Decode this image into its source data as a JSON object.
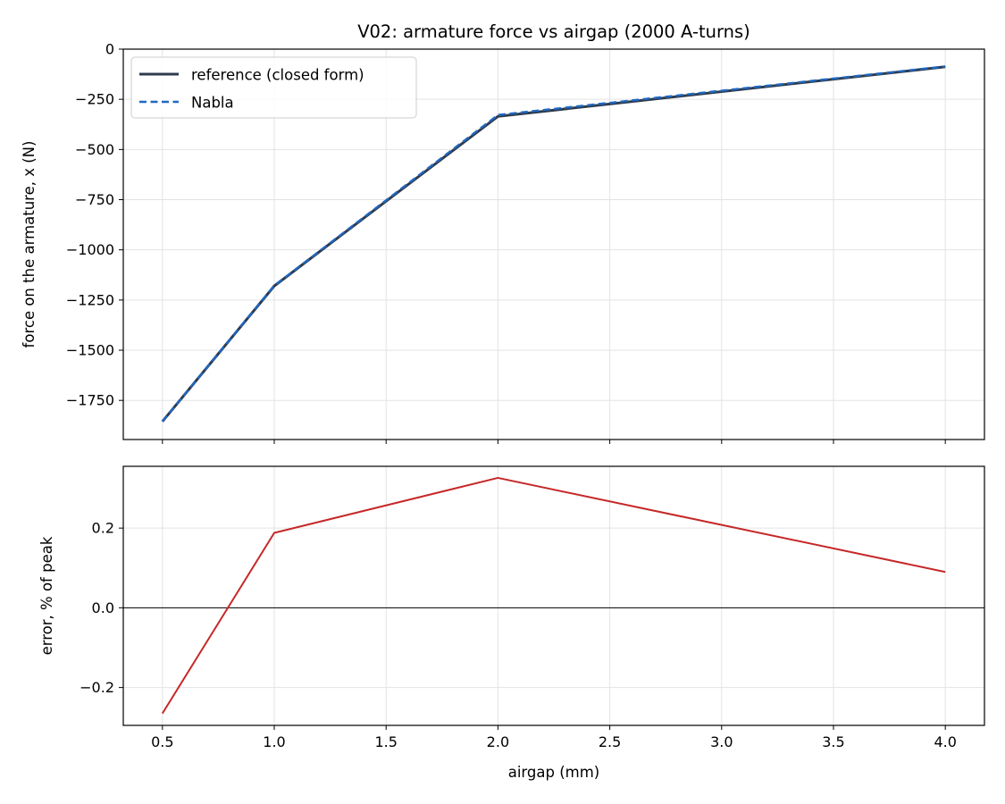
{
  "chart_data": [
    {
      "type": "line",
      "title": "V02: armature force vs airgap (2000 A-turns)",
      "xlabel": "",
      "ylabel": "force on the armature, x (N)",
      "x": [
        0.5,
        1.0,
        2.0,
        4.0
      ],
      "xlim": [
        0.325,
        4.175
      ],
      "ylim": [
        -1945,
        0
      ],
      "xticks": [
        0.5,
        1.0,
        1.5,
        2.0,
        2.5,
        3.0,
        3.5,
        4.0
      ],
      "yticks": [
        0,
        -250,
        -500,
        -750,
        -1000,
        -1250,
        -1500,
        -1750
      ],
      "ytick_labels": [
        "0",
        "−250",
        "−500",
        "−750",
        "−1000",
        "−1250",
        "−1500",
        "−1750"
      ],
      "grid": true,
      "legend_position": "upper-left",
      "series": [
        {
          "name": "reference (closed form)",
          "values": [
            -1855,
            -1180,
            -335,
            -88
          ],
          "color": "#2e3b4e",
          "style": "solid"
        },
        {
          "name": "Nabla",
          "values": [
            -1855,
            -1178,
            -328,
            -86
          ],
          "color": "#1f68c0",
          "style": "dashed"
        }
      ]
    },
    {
      "type": "line",
      "title": "",
      "xlabel": "airgap (mm)",
      "ylabel": "error, % of peak",
      "x": [
        0.5,
        1.0,
        2.0,
        4.0
      ],
      "xlim": [
        0.325,
        4.175
      ],
      "ylim": [
        -0.295,
        0.355
      ],
      "xticks": [
        0.5,
        1.0,
        1.5,
        2.0,
        2.5,
        3.0,
        3.5,
        4.0
      ],
      "xtick_labels": [
        "0.5",
        "1.0",
        "1.5",
        "2.0",
        "2.5",
        "3.0",
        "3.5",
        "4.0"
      ],
      "yticks": [
        -0.2,
        0.0,
        0.2
      ],
      "ytick_labels": [
        "−0.2",
        "0.0",
        "0.2"
      ],
      "grid": true,
      "zero_line": true,
      "series": [
        {
          "values": [
            -0.265,
            0.188,
            0.326,
            0.09
          ],
          "color": "#c62828",
          "style": "solid"
        }
      ]
    }
  ]
}
